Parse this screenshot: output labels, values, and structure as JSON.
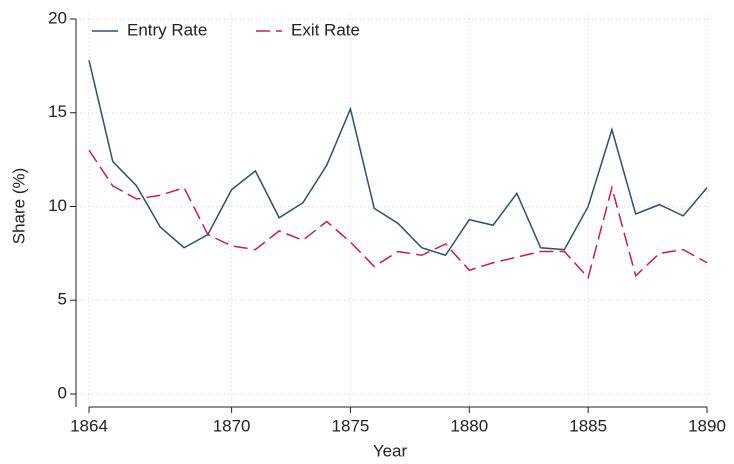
{
  "chart_data": {
    "type": "line",
    "x": [
      1864,
      1865,
      1866,
      1867,
      1868,
      1869,
      1870,
      1871,
      1872,
      1873,
      1874,
      1875,
      1876,
      1877,
      1878,
      1879,
      1880,
      1881,
      1882,
      1883,
      1884,
      1885,
      1886,
      1887,
      1888,
      1889,
      1890
    ],
    "series": [
      {
        "name": "Entry Rate",
        "color": "#2e4f6e",
        "dash": false,
        "values": [
          17.8,
          12.4,
          11.1,
          8.9,
          7.8,
          8.5,
          10.9,
          11.9,
          9.4,
          10.2,
          12.2,
          15.2,
          9.9,
          9.1,
          7.8,
          7.4,
          9.3,
          9.0,
          10.7,
          7.8,
          7.7,
          10.0,
          14.1,
          9.6,
          10.1,
          9.5,
          11.0
        ]
      },
      {
        "name": "Exit Rate",
        "color": "#c81d4e",
        "dash": true,
        "values": [
          13.0,
          11.1,
          10.4,
          10.6,
          11.0,
          8.5,
          7.9,
          7.7,
          8.7,
          8.2,
          9.2,
          8.1,
          6.8,
          7.6,
          7.4,
          8.0,
          6.6,
          7.0,
          7.3,
          7.6,
          7.6,
          6.2,
          11.0,
          6.3,
          7.5,
          7.7,
          7.0
        ]
      }
    ],
    "x_label": "Year",
    "y_label": "Share (%)",
    "xlim": [
      1864,
      1890
    ],
    "xticks": [
      1864,
      1870,
      1875,
      1880,
      1885,
      1890
    ],
    "ylim": [
      0,
      20
    ],
    "yticks": [
      0,
      5,
      10,
      15,
      20
    ],
    "grid": true,
    "legend": "top-left"
  }
}
